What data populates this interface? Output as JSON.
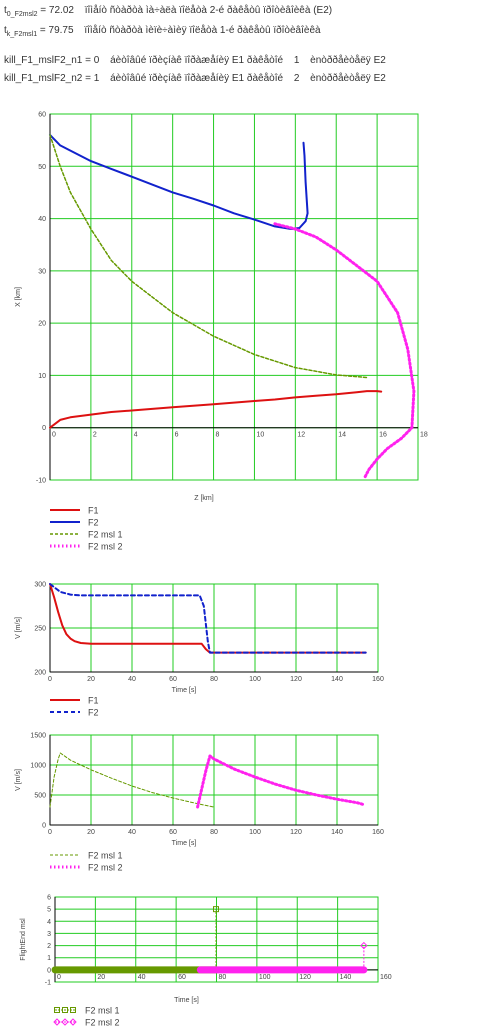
{
  "header": {
    "line1": {
      "sym": "t",
      "sub": "0_F2msl2",
      "val": "= 72.02",
      "desc": "ïîìåíò ñòàðòà ìà÷àëà ïîëåòà 2-é ðàêåòû ïðîòèâîèêà (E2)"
    },
    "line2": {
      "sym": "t",
      "sub": "k_F2msl1",
      "val": "= 79.75",
      "desc": "ïîìåíò ñòàðòà ìèïè÷àìèÿ ïîëåòà 1-é ðàêåòû ïðîòèâîèêà"
    },
    "line3": {
      "name": "kill_F1_mslF2_n1",
      "val": "= 0",
      "desc": "áèòîâûé ïðèçíàê ïîðàæåíèÿ E1 ðàêåòîé",
      "idx": "1",
      "tail": "ènòððåèòåëÿ E2"
    },
    "line4": {
      "name": "kill_F1_mslF2_n2",
      "val": "= 1",
      "desc": "áèòîâûé ïðèçíàê ïîðàæåíèÿ E1 ðàêåòîé",
      "idx": "2",
      "tail": "ènòððåèòåëÿ E2"
    }
  },
  "colors": {
    "F1": "#dd1111",
    "F2": "#1122cc",
    "msl1": "#669900",
    "msl2": "#ff22ee",
    "grid": "#22cc22"
  },
  "chart_data": [
    {
      "type": "line",
      "xlabel": "Z  [km]",
      "ylabel": "X  [km]",
      "xlim": [
        0,
        18
      ],
      "ylim": [
        -10,
        60
      ],
      "xticks": [
        "0",
        "2",
        "4",
        "6",
        "8",
        "10",
        "12",
        "14",
        "16",
        "18"
      ],
      "yticks": [
        "-10",
        "0",
        "10",
        "20",
        "30",
        "40",
        "50",
        "60"
      ],
      "legend": [
        "F1",
        "F2",
        "F2 msl 1",
        "F2 msl 2"
      ],
      "series": [
        {
          "name": "F1",
          "x": [
            0,
            0.5,
            1,
            2,
            3,
            4,
            5,
            6,
            7,
            8,
            9,
            10,
            11,
            12,
            13,
            14,
            15,
            15.5,
            16,
            16.2
          ],
          "y": [
            0,
            1.5,
            2,
            2.5,
            3,
            3.3,
            3.6,
            3.9,
            4.2,
            4.5,
            4.8,
            5.1,
            5.4,
            5.8,
            6.1,
            6.4,
            6.8,
            7,
            7,
            6.9
          ]
        },
        {
          "name": "F2",
          "x": [
            0,
            0.5,
            1,
            2,
            3,
            4,
            5,
            6,
            7,
            8,
            9,
            10,
            11,
            11.8,
            12.2,
            12.5,
            12.6,
            12.5,
            12.45,
            12.4
          ],
          "y": [
            56,
            54,
            53,
            51,
            49.5,
            48,
            46.5,
            45,
            43.8,
            42.5,
            41,
            39.8,
            38.5,
            38,
            38.2,
            39.5,
            41,
            47,
            52,
            54.5
          ]
        },
        {
          "name": "F2 msl 1",
          "x": [
            0,
            0.5,
            1,
            2,
            3,
            4,
            5,
            6,
            8,
            10,
            12,
            14,
            15.5
          ],
          "y": [
            56,
            50,
            45,
            38,
            32,
            28,
            25,
            22,
            17.5,
            14,
            11.5,
            10.1,
            9.6
          ]
        },
        {
          "name": "F2 msl 2",
          "x": [
            11,
            12,
            13,
            14,
            15,
            16,
            17,
            17.5,
            17.8,
            17.7,
            17.2,
            16.5,
            16,
            15.6,
            15.4
          ],
          "y": [
            39,
            38,
            36.5,
            34,
            31,
            28,
            22,
            15,
            7,
            0,
            -2,
            -4,
            -6,
            -8,
            -9.5
          ]
        }
      ]
    },
    {
      "type": "line",
      "xlabel": "Time  [s]",
      "ylabel": "V [m/s]",
      "xlim": [
        0,
        160
      ],
      "ylim": [
        200,
        300
      ],
      "xticks": [
        "0",
        "20",
        "40",
        "60",
        "80",
        "100",
        "120",
        "140",
        "160"
      ],
      "yticks": [
        "200",
        "250",
        "300"
      ],
      "legend": [
        "F1",
        "F2"
      ],
      "series": [
        {
          "name": "F1",
          "x": [
            0,
            2,
            4,
            6,
            8,
            10,
            12,
            15,
            20,
            40,
            60,
            74,
            76,
            78,
            80,
            100,
            120,
            140,
            154
          ],
          "y": [
            300,
            285,
            268,
            253,
            243,
            238,
            235,
            233,
            232,
            232,
            232,
            232,
            226,
            222,
            222,
            222,
            222,
            222,
            222
          ]
        },
        {
          "name": "F2",
          "x": [
            0,
            5,
            10,
            15,
            20,
            40,
            60,
            73,
            75,
            76,
            77,
            78,
            80,
            100,
            120,
            140,
            154
          ],
          "y": [
            300,
            291,
            288,
            287,
            287,
            287,
            287,
            287,
            275,
            255,
            235,
            222,
            222,
            222,
            222,
            222,
            222
          ]
        }
      ]
    },
    {
      "type": "line",
      "xlabel": "Time  [s]",
      "ylabel": "V [m/s]",
      "xlim": [
        0,
        160
      ],
      "ylim": [
        0,
        1500
      ],
      "xticks": [
        "0",
        "20",
        "40",
        "60",
        "80",
        "100",
        "120",
        "140",
        "160"
      ],
      "yticks": [
        "0",
        "500",
        "1000",
        "1500"
      ],
      "legend": [
        "F2 msl 1",
        "F2 msl 2"
      ],
      "series": [
        {
          "name": "F2 msl 1",
          "x": [
            0,
            2,
            4,
            5,
            10,
            20,
            30,
            40,
            50,
            60,
            70,
            79.75
          ],
          "y": [
            300,
            800,
            1100,
            1200,
            1080,
            920,
            780,
            650,
            540,
            450,
            370,
            300
          ]
        },
        {
          "name": "F2 msl 2",
          "x": [
            72,
            74,
            76,
            78,
            80,
            90,
            100,
            110,
            120,
            130,
            140,
            150,
            153
          ],
          "y": [
            300,
            600,
            900,
            1150,
            1100,
            930,
            800,
            680,
            580,
            500,
            430,
            370,
            340
          ]
        }
      ]
    },
    {
      "type": "line",
      "xlabel": "Time  [s]",
      "ylabel": "FlightEnd msl",
      "xlim": [
        0,
        160
      ],
      "ylim": [
        -1,
        6
      ],
      "xticks": [
        "0",
        "20",
        "40",
        "60",
        "80",
        "100",
        "120",
        "140",
        "160"
      ],
      "yticks": [
        "-1",
        "0",
        "1",
        "2",
        "3",
        "4",
        "5",
        "6"
      ],
      "legend": [
        "F2 msl 1",
        "F2 msl 2"
      ],
      "series": [
        {
          "name": "F2 msl 1",
          "x": [
            0,
            10,
            20,
            30,
            40,
            50,
            60,
            70,
            79.75,
            79.75
          ],
          "y": [
            0,
            0,
            0,
            0,
            0,
            0,
            0,
            0,
            0,
            5
          ]
        },
        {
          "name": "F2 msl 2",
          "x": [
            72,
            80,
            90,
            100,
            110,
            120,
            130,
            140,
            150,
            153,
            153
          ],
          "y": [
            0,
            0,
            0,
            0,
            0,
            0,
            0,
            0,
            0,
            0,
            2
          ]
        }
      ]
    }
  ]
}
